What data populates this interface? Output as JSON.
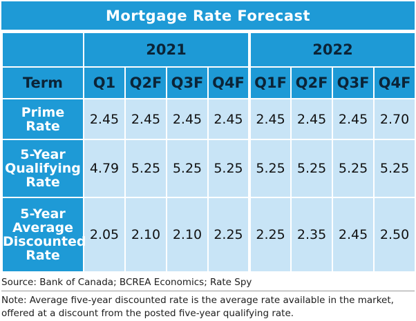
{
  "title": "Mortgage Rate Forecast",
  "years": [
    "2021",
    "2022"
  ],
  "term_header": "Term",
  "quarters": [
    "Q1",
    "Q2F",
    "Q3F",
    "Q4F",
    "Q1F",
    "Q2F",
    "Q3F",
    "Q4F"
  ],
  "rows": [
    {
      "label_lines": [
        "Prime",
        "Rate"
      ],
      "values": [
        "2.45",
        "2.45",
        "2.45",
        "2.45",
        "2.45",
        "2.45",
        "2.45",
        "2.70"
      ]
    },
    {
      "label_lines": [
        "5-Year",
        "Qualifying",
        "Rate"
      ],
      "values": [
        "4.79",
        "5.25",
        "5.25",
        "5.25",
        "5.25",
        "5.25",
        "5.25",
        "5.25"
      ]
    },
    {
      "label_lines": [
        "5-Year",
        "Average",
        "Discounted",
        "Rate"
      ],
      "values": [
        "2.05",
        "2.10",
        "2.10",
        "2.25",
        "2.25",
        "2.35",
        "2.45",
        "2.50"
      ]
    }
  ],
  "source": "Source: Bank of Canada; BCREA Economics; Rate Spy",
  "note": "Note: Average five-year discounted rate is the average rate available in the market, offered at a discount from the posted five-year qualifying rate."
}
